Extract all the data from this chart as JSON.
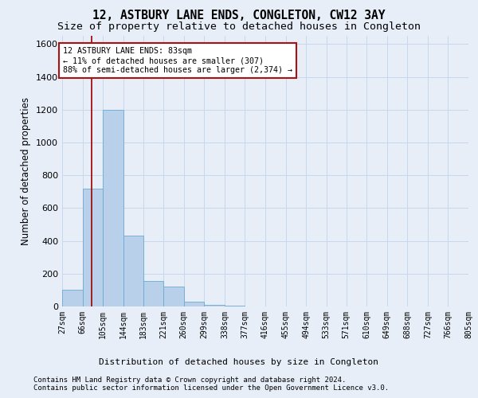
{
  "title": "12, ASTBURY LANE ENDS, CONGLETON, CW12 3AY",
  "subtitle": "Size of property relative to detached houses in Congleton",
  "xlabel_bottom": "Distribution of detached houses by size in Congleton",
  "ylabel": "Number of detached properties",
  "footnote1": "Contains HM Land Registry data © Crown copyright and database right 2024.",
  "footnote2": "Contains public sector information licensed under the Open Government Licence v3.0.",
  "bar_edges": [
    27,
    66,
    105,
    144,
    183,
    221,
    260,
    299,
    338,
    377,
    416,
    455,
    494,
    533,
    571,
    610,
    649,
    688,
    727,
    766,
    805
  ],
  "bar_heights": [
    100,
    720,
    1200,
    430,
    155,
    120,
    30,
    10,
    5,
    0,
    0,
    0,
    0,
    0,
    0,
    0,
    0,
    0,
    0,
    0
  ],
  "bar_color": "#b8d0ea",
  "bar_edge_color": "#6aaad4",
  "grid_color": "#c8d8ec",
  "property_size": 83,
  "red_line_color": "#a01010",
  "annotation_line1": "12 ASTBURY LANE ENDS: 83sqm",
  "annotation_line2": "← 11% of detached houses are smaller (307)",
  "annotation_line3": "88% of semi-detached houses are larger (2,374) →",
  "annotation_box_color": "#aa1111",
  "ylim": [
    0,
    1650
  ],
  "yticks": [
    0,
    200,
    400,
    600,
    800,
    1000,
    1200,
    1400,
    1600
  ],
  "background_color": "#e8eef8",
  "title_fontsize": 10.5,
  "subtitle_fontsize": 9.5,
  "ylabel_fontsize": 8.5,
  "tick_fontsize": 8,
  "xtick_fontsize": 7,
  "footnote_fontsize": 6.5,
  "xlabel_fontsize": 8
}
